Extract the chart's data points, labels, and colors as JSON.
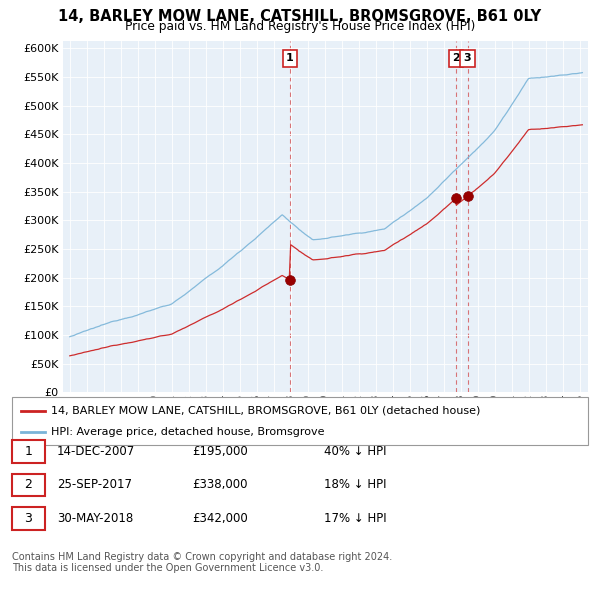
{
  "title": "14, BARLEY MOW LANE, CATSHILL, BROMSGROVE, B61 0LY",
  "subtitle": "Price paid vs. HM Land Registry's House Price Index (HPI)",
  "legend_property": "14, BARLEY MOW LANE, CATSHILL, BROMSGROVE, B61 0LY (detached house)",
  "legend_hpi": "HPI: Average price, detached house, Bromsgrove",
  "transactions": [
    {
      "num": 1,
      "date": "14-DEC-2007",
      "price": 195000,
      "pct": "40% ↓ HPI",
      "x_year": 2007.96
    },
    {
      "num": 2,
      "date": "25-SEP-2017",
      "price": 338000,
      "pct": "18% ↓ HPI",
      "x_year": 2017.73
    },
    {
      "num": 3,
      "date": "30-MAY-2018",
      "price": 342000,
      "pct": "17% ↓ HPI",
      "x_year": 2018.41
    }
  ],
  "footnote1": "Contains HM Land Registry data © Crown copyright and database right 2024.",
  "footnote2": "This data is licensed under the Open Government Licence v3.0.",
  "hpi_color": "#7ab4d8",
  "price_color": "#cc2222",
  "ylim_max": 600000,
  "ytick_step": 50000,
  "xlim_start": 1995.0,
  "xlim_end": 2025.3,
  "chart_bg": "#e8f0f8"
}
